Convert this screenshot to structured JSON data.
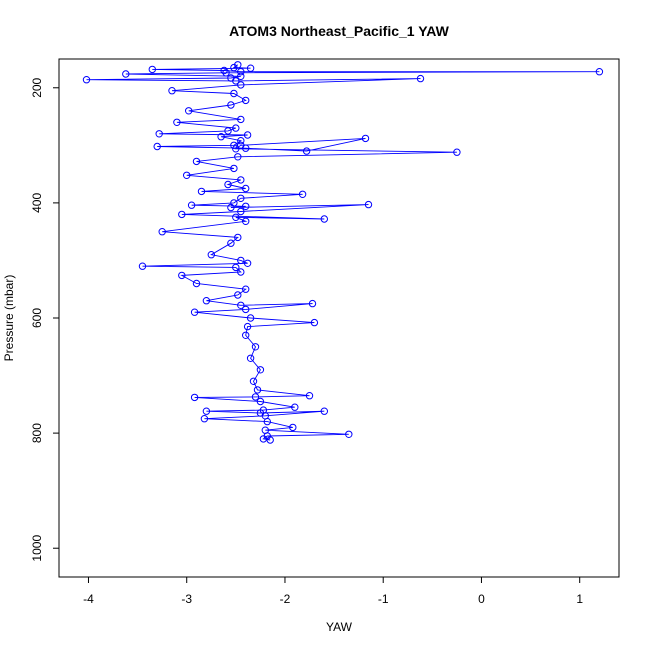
{
  "chart_data": {
    "type": "scatter",
    "title": "ATOM3 Northeast_Pacific_1 YAW",
    "xlabel": "YAW",
    "ylabel": "Pressure (mbar)",
    "xlim": [
      -4.3,
      1.4
    ],
    "ylim": [
      1050,
      150
    ],
    "y_axis_inverted": true,
    "x_ticks": [
      -4,
      -3,
      -2,
      -1,
      0,
      1
    ],
    "x_tick_labels": [
      "-4",
      "-3",
      "-2",
      "-1",
      "0",
      "1"
    ],
    "y_ticks": [
      200,
      400,
      600,
      800,
      1000
    ],
    "y_tick_labels": [
      "200",
      "400",
      "600",
      "800",
      "1000"
    ],
    "grid": false,
    "legend": "none",
    "marker": "open-circle",
    "connected_with_lines": true,
    "series_color": "#0000ff",
    "series": [
      {
        "x": [
          -2.48,
          -2.52,
          -2.35,
          -3.35,
          -2.62,
          -2.45,
          1.2,
          -2.6,
          -3.62,
          -2.45,
          -2.55,
          -4.02,
          -2.5,
          -0.62,
          -2.45,
          -3.15,
          -2.52,
          -2.4,
          -2.55,
          -2.98,
          -2.45,
          -3.1,
          -2.5,
          -2.58,
          -3.28,
          -2.38,
          -2.65,
          -2.45,
          -2.52,
          -3.3,
          -2.4,
          -1.78,
          -1.18,
          -2.45,
          -2.5,
          -0.25,
          -2.48,
          -2.9,
          -2.52,
          -3.0,
          -2.45,
          -2.58,
          -2.4,
          -2.85,
          -1.82,
          -2.45,
          -2.52,
          -2.95,
          -2.4,
          -2.55,
          -1.15,
          -2.45,
          -3.05,
          -1.6,
          -2.5,
          -2.4,
          -3.25,
          -2.48,
          -2.55,
          -2.75,
          -2.45,
          -2.38,
          -3.45,
          -2.5,
          -2.45,
          -3.05,
          -2.9,
          -2.4,
          -2.48,
          -2.8,
          -2.45,
          -1.72,
          -2.4,
          -2.92,
          -2.35,
          -1.7,
          -2.38,
          -2.4,
          -2.3,
          -2.35,
          -2.25,
          -2.32,
          -2.28,
          -1.75,
          -2.3,
          -2.92,
          -2.25,
          -1.9,
          -2.22,
          -2.8,
          -2.25,
          -1.6,
          -2.2,
          -2.82,
          -2.18,
          -1.92,
          -2.2,
          -1.35,
          -2.18,
          -2.22,
          -2.15
        ],
        "y": [
          160,
          165,
          166,
          168,
          170,
          172,
          172,
          174,
          176,
          180,
          183,
          186,
          188,
          184,
          195,
          205,
          210,
          222,
          230,
          240,
          255,
          260,
          270,
          275,
          280,
          282,
          285,
          292,
          300,
          302,
          305,
          310,
          288,
          300,
          306,
          312,
          320,
          328,
          340,
          352,
          360,
          368,
          375,
          380,
          385,
          392,
          400,
          404,
          406,
          408,
          403,
          415,
          420,
          428,
          425,
          432,
          450,
          460,
          470,
          490,
          500,
          505,
          510,
          512,
          520,
          526,
          540,
          550,
          560,
          570,
          578,
          575,
          585,
          590,
          600,
          608,
          615,
          630,
          650,
          670,
          690,
          710,
          725,
          735,
          737,
          738,
          745,
          755,
          760,
          762,
          765,
          762,
          770,
          775,
          780,
          790,
          795,
          802,
          805,
          810,
          812
        ]
      }
    ]
  }
}
